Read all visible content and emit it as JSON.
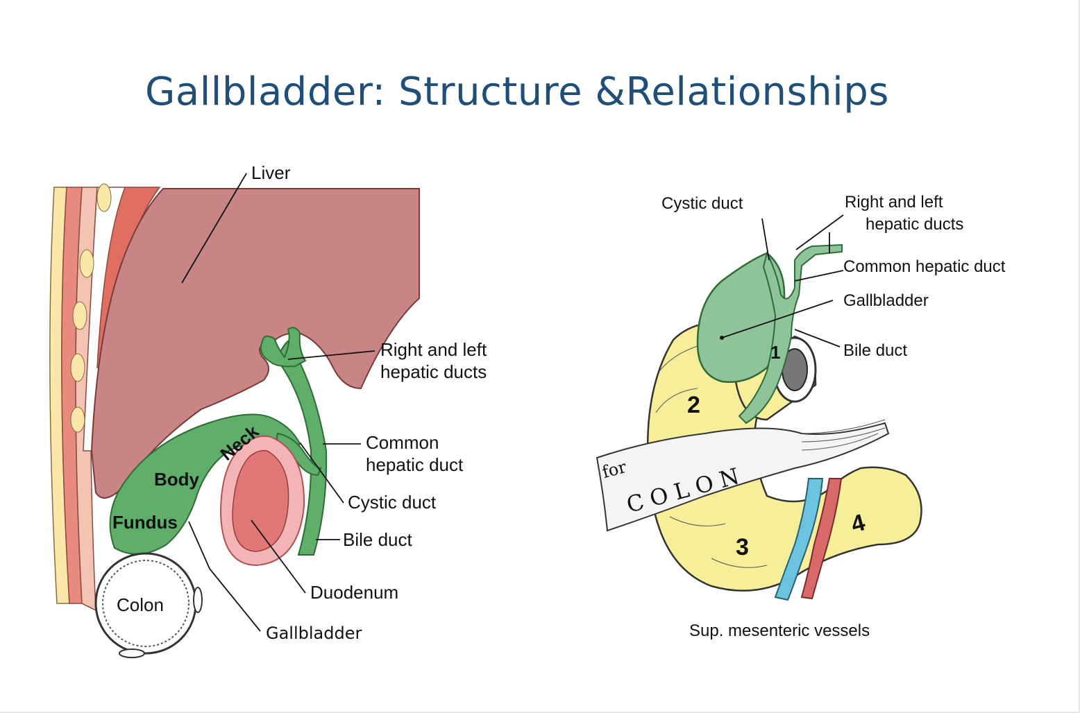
{
  "title": "Gallbladder: Structure &Relationships",
  "left_figure": {
    "labels": {
      "liver": "Liver",
      "right_left_hepatic_1": "Right and left",
      "right_left_hepatic_2": "hepatic ducts",
      "common_hepatic_1": "Common",
      "common_hepatic_2": "hepatic duct",
      "cystic_duct": "Cystic duct",
      "bile_duct": "Bile duct",
      "duodenum": "Duodenum",
      "gallbladder": "Gallbladder",
      "colon": "Colon",
      "neck": "Neck",
      "body": "Body",
      "fundus": "Fundus"
    }
  },
  "right_figure": {
    "labels": {
      "cystic_duct": "Cystic duct",
      "right_left_hepatic_1": "Right and left",
      "right_left_hepatic_2": "hepatic ducts",
      "common_hepatic": "Common hepatic duct",
      "gallbladder": "Gallbladder",
      "bile_duct": "Bile duct",
      "sup_mesenteric": "Sup. mesenteric vessels",
      "part_1": "1",
      "part_2": "2",
      "part_3": "3",
      "part_4": "4",
      "for": "for",
      "colon": "COLON"
    }
  },
  "colors": {
    "title": "#1f4e79",
    "liver": "#c98585",
    "gallbladder": "#5fae6a",
    "duodenum_outer": "#f2b4b4",
    "duodenum_inner": "#e07878",
    "pancreas_yellow": "#f7ee9a",
    "vessel_blue": "#6cc3df",
    "vessel_red": "#d96a6a"
  }
}
